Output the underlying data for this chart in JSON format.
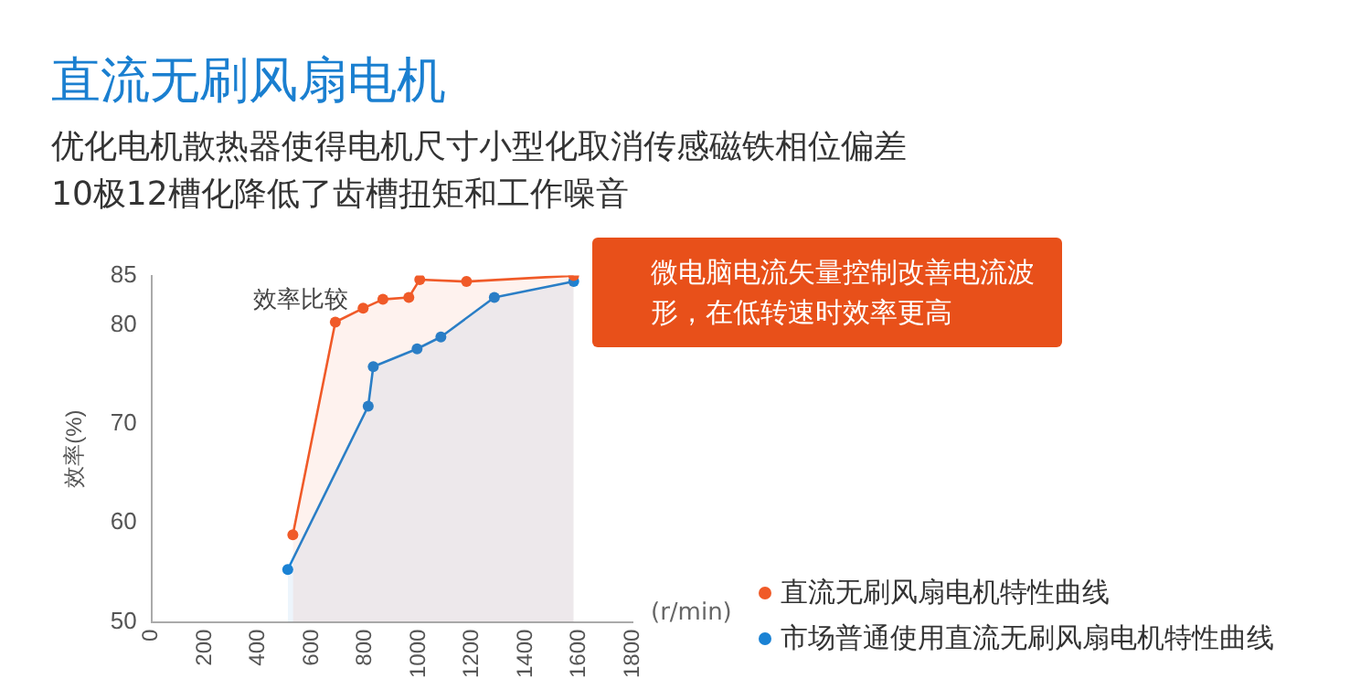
{
  "chart_data": {
    "type": "area",
    "title": "直流无刷风扇电机",
    "subtitle": "优化电机散热器使得电机尺寸小型化取消传感磁铁相位偏差\n10极12槽化降低了齿槽扭矩和工作噪音",
    "xlabel": "(r/min)",
    "ylabel": "效率(%)",
    "annotations": [
      "微电脑电流矢量控制改善电流波形，在低转速时效率更高",
      {
        "text": "效率比较",
        "x": 792,
        "y": 81.7
      }
    ],
    "series": [
      {
        "name": "直流无刷风扇电机特性曲线",
        "color": "#f05a28",
        "x": [
          529,
          688,
          792,
          866,
          963,
          1004,
          1179,
          1580
        ],
        "values": [
          58.8,
          80.3,
          81.7,
          82.6,
          82.8,
          84.6,
          84.4,
          85.0
        ]
      },
      {
        "name": "市场普通使用直流无刷风扇电机特性曲线",
        "color": "#1a82d4",
        "x": [
          510,
          811,
          830,
          994,
          1083,
          1283,
          1580
        ],
        "values": [
          55.3,
          71.8,
          75.8,
          77.6,
          78.8,
          82.8,
          84.4
        ]
      }
    ],
    "xlim": [
      0,
      1800
    ],
    "xticks": [
      0,
      200,
      400,
      600,
      800,
      1000,
      1200,
      1400,
      1600,
      1800
    ],
    "ylim": [
      50,
      85
    ],
    "yticks": [
      50,
      60,
      70,
      80,
      85
    ],
    "grid": false,
    "legend": "bottom right",
    "marker": "circle",
    "line_style": "solid"
  }
}
